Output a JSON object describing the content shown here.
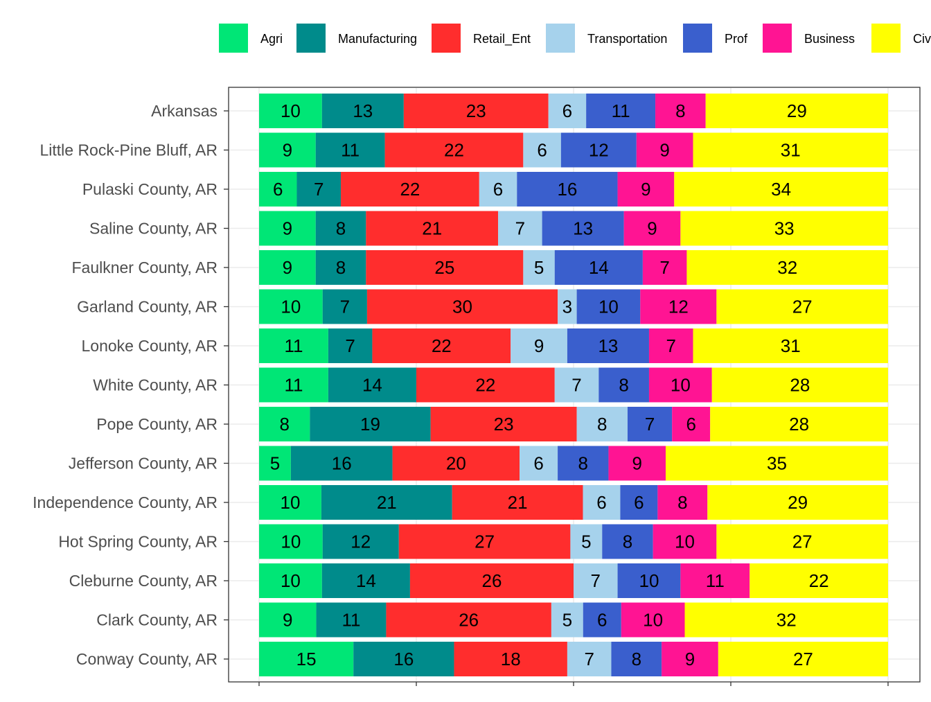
{
  "chart_data": {
    "type": "bar",
    "orientation": "horizontal",
    "stacked": true,
    "stack_mode": "percent",
    "grid": true,
    "legend_position": "top",
    "categories": [
      "Arkansas",
      "Little Rock-Pine Bluff, AR",
      "Pulaski County, AR",
      "Saline County, AR",
      "Faulkner County, AR",
      "Garland County, AR",
      "Lonoke County, AR",
      "White County, AR",
      "Pope County, AR",
      "Jefferson County, AR",
      "Independence County, AR",
      "Hot Spring County, AR",
      "Cleburne County, AR",
      "Clark County, AR",
      "Conway County, AR"
    ],
    "series": [
      {
        "name": "Agri",
        "color": "#00E676",
        "values": [
          10,
          9,
          6,
          9,
          9,
          10,
          11,
          11,
          8,
          5,
          10,
          10,
          10,
          9,
          15
        ]
      },
      {
        "name": "Manufacturing",
        "color": "#008B8B",
        "values": [
          13,
          11,
          7,
          8,
          8,
          7,
          7,
          14,
          19,
          16,
          21,
          12,
          14,
          11,
          16
        ]
      },
      {
        "name": "Retail_Ent",
        "color": "#FF2D2D",
        "values": [
          23,
          22,
          22,
          21,
          25,
          30,
          22,
          22,
          23,
          20,
          21,
          27,
          26,
          26,
          18
        ]
      },
      {
        "name": "Transportation",
        "color": "#A6D2EC",
        "values": [
          6,
          6,
          6,
          7,
          5,
          3,
          9,
          7,
          8,
          6,
          6,
          5,
          7,
          5,
          7
        ]
      },
      {
        "name": "Prof",
        "color": "#3A5FCD",
        "values": [
          11,
          12,
          16,
          13,
          14,
          10,
          13,
          8,
          7,
          8,
          6,
          8,
          10,
          6,
          8
        ]
      },
      {
        "name": "Business",
        "color": "#FF1493",
        "values": [
          8,
          9,
          9,
          9,
          7,
          12,
          7,
          10,
          6,
          9,
          8,
          10,
          11,
          10,
          9
        ]
      },
      {
        "name": "Civ",
        "color": "#FFFF00",
        "values": [
          29,
          31,
          34,
          33,
          32,
          27,
          31,
          28,
          28,
          35,
          29,
          27,
          22,
          32,
          27
        ]
      }
    ]
  }
}
